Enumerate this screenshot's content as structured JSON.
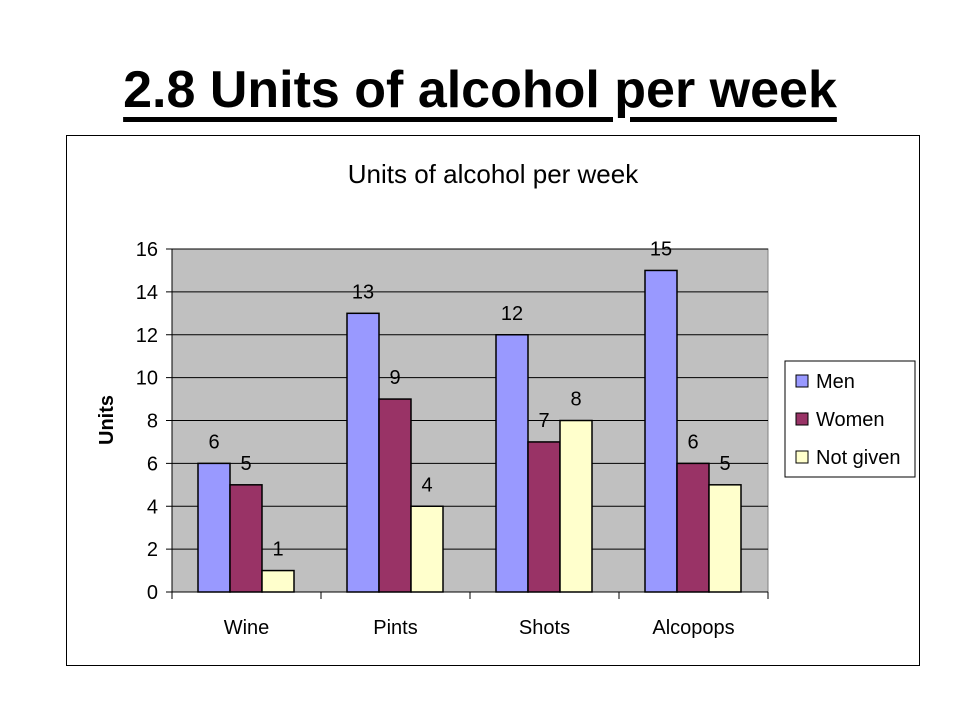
{
  "slide": {
    "title": "2.8 Units of alcohol per week"
  },
  "chart_data": {
    "type": "bar",
    "title": "Units of alcohol per week",
    "xlabel": "",
    "ylabel": "Units",
    "ylim": [
      0,
      16
    ],
    "yticks": [
      0,
      2,
      4,
      6,
      8,
      10,
      12,
      14,
      16
    ],
    "categories": [
      "Wine",
      "Pints",
      "Shots",
      "Alcopops"
    ],
    "grid": true,
    "legend_position": "right",
    "plot_background": "#c0c0c0",
    "series": [
      {
        "name": "Men",
        "values": [
          6,
          13,
          12,
          15
        ],
        "color": "#9999ff"
      },
      {
        "name": "Women",
        "values": [
          5,
          9,
          7,
          6
        ],
        "color": "#993366"
      },
      {
        "name": "Not given",
        "values": [
          1,
          4,
          8,
          5
        ],
        "color": "#ffffcc"
      }
    ]
  }
}
